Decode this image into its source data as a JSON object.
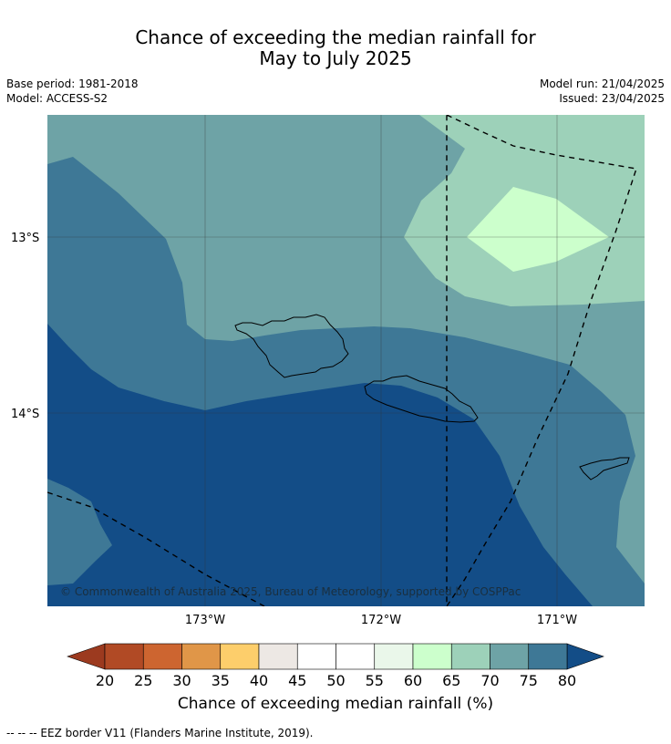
{
  "title_line1": "Chance of exceeding the median rainfall for",
  "title_line2": "May to July 2025",
  "base_period": "Base period: 1981-2018",
  "model": "Model: ACCESS-S2",
  "model_run": "Model run: 21/04/2025",
  "issued": "Issued: 23/04/2025",
  "lat_labels": [
    "13°S",
    "14°S"
  ],
  "lon_labels": [
    "173°W",
    "172°W",
    "171°W"
  ],
  "copyright": "© Commonwealth of Australia 2025, Bureau of Meteorology, supported by COSPPac",
  "colorbar": {
    "ticks": [
      "20",
      "25",
      "30",
      "35",
      "40",
      "45",
      "50",
      "55",
      "60",
      "65",
      "70",
      "75",
      "80"
    ],
    "colors": [
      "#b14a25",
      "#cd6530",
      "#e09648",
      "#fdce6b",
      "#ede8e4",
      "#ffffff",
      "#ffffff",
      "#eaf7ea",
      "#ccffcc",
      "#9dd1b9",
      "#6ea3a6",
      "#3e7896"
    ],
    "under_color": "#9c3a1f",
    "over_color": "#134d87",
    "label": "Chance of exceeding median rainfall (%)"
  },
  "footnote": "--  --  -- EEZ border V11 (Flanders Marine Institute, 2019).",
  "map_colors": {
    "c70_75": "#6ea3a6",
    "c65_70": "#9dd1b9",
    "c60_65": "#ccffcc",
    "c75_80": "#3e7896",
    "c80plus": "#134d87"
  }
}
